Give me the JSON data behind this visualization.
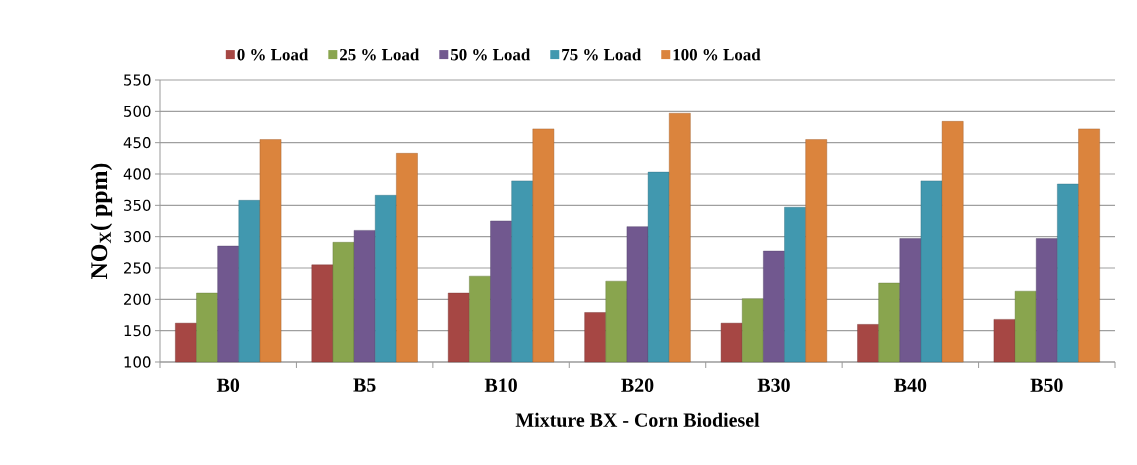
{
  "chart_data": {
    "type": "bar",
    "xlabel": "Mixture BX - Corn Biodiesel",
    "ylabel": "NO$_{X}$( ppm)",
    "categories": [
      "B0",
      "B5",
      "B10",
      "B20",
      "B30",
      "B40",
      "B50"
    ],
    "series": [
      {
        "name": "0 % Load",
        "color": "#a64744",
        "values": [
          162,
          255,
          210,
          179,
          162,
          160,
          168
        ]
      },
      {
        "name": "25 % Load",
        "color": "#89a54e",
        "values": [
          210,
          291,
          237,
          229,
          201,
          226,
          213
        ]
      },
      {
        "name": "50 % Load",
        "color": "#71588f",
        "values": [
          285,
          310,
          325,
          316,
          277,
          297,
          297
        ]
      },
      {
        "name": "75 % Load",
        "color": "#4198af",
        "values": [
          358,
          366,
          389,
          403,
          347,
          389,
          384
        ]
      },
      {
        "name": "100 % Load",
        "color": "#db843d",
        "values": [
          455,
          433,
          472,
          497,
          455,
          484,
          472
        ]
      }
    ],
    "ylim": [
      100,
      550
    ],
    "yticks": [
      100,
      150,
      200,
      250,
      300,
      350,
      400,
      450,
      500,
      550
    ],
    "grid": "y",
    "legend": "top"
  }
}
